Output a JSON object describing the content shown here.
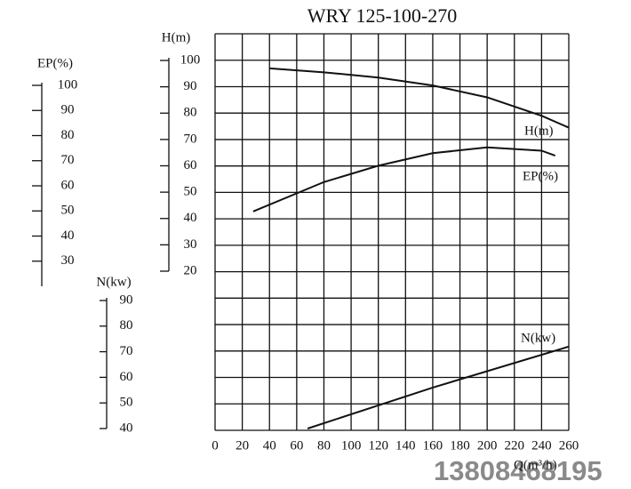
{
  "chart_data": {
    "type": "line",
    "title": "WRY 125-100-270",
    "x_label": "Q(m³/h)",
    "xlim": [
      0,
      260
    ],
    "xticks": [
      0,
      20,
      40,
      60,
      80,
      100,
      120,
      140,
      160,
      180,
      200,
      220,
      240,
      260
    ],
    "color": "#111111",
    "watermark": "13808468195",
    "series": [
      {
        "name": "H(m)",
        "axis": "h",
        "ylim": [
          20,
          100
        ],
        "yticks": [
          20,
          30,
          40,
          50,
          60,
          70,
          80,
          90,
          100
        ],
        "x": [
          40,
          80,
          120,
          160,
          200,
          240,
          260
        ],
        "values": [
          97,
          95.5,
          93.5,
          90.5,
          86,
          79,
          74.5
        ]
      },
      {
        "name": "EP(%)",
        "axis": "ep",
        "ylim": [
          20,
          100
        ],
        "yticks": [
          30,
          40,
          50,
          60,
          70,
          80,
          90,
          100
        ],
        "x": [
          28,
          80,
          120,
          160,
          200,
          240,
          250
        ],
        "values": [
          49.8,
          61.5,
          68,
          73,
          75.3,
          74,
          72
        ]
      },
      {
        "name": "N(kw)",
        "axis": "n",
        "ylim": [
          40,
          90
        ],
        "yticks": [
          40,
          50,
          60,
          70,
          80,
          90
        ],
        "x": [
          68,
          160,
          260
        ],
        "values": [
          40,
          56,
          72
        ]
      }
    ]
  }
}
